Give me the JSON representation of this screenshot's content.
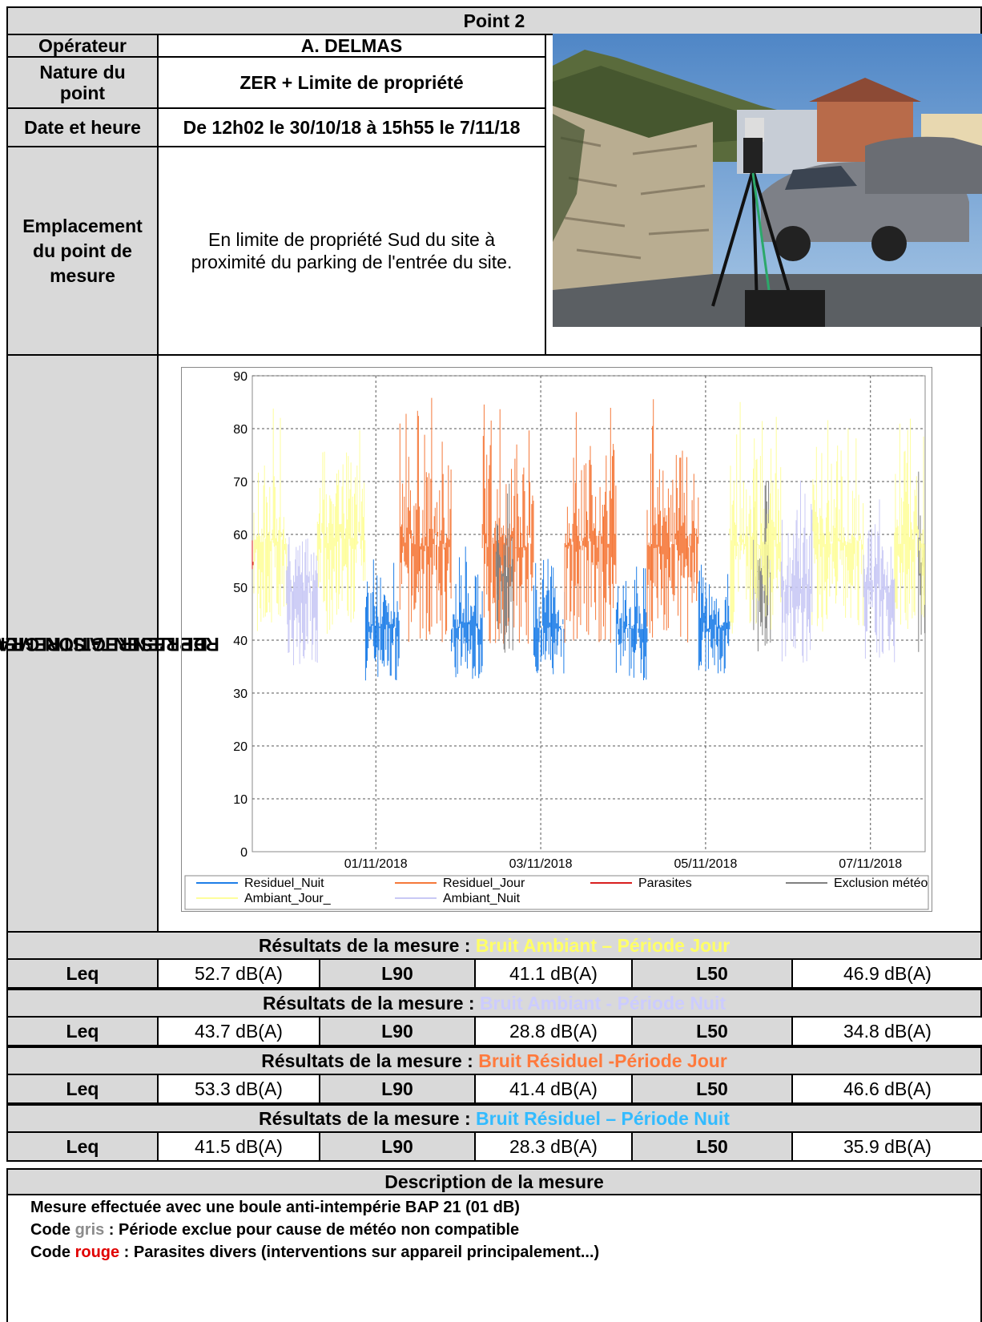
{
  "header": {
    "title": "Point 2"
  },
  "info": {
    "operateur_label": "Opérateur",
    "operateur_value": "A. DELMAS",
    "nature_label_1": "Nature du",
    "nature_label_2": "point",
    "nature_value": "ZER + Limite de propriété",
    "date_label": "Date et heure",
    "date_value": "De 12h02 le 30/10/18 à 15h55 le 7/11/18",
    "emplacement_label_1": "Emplacement",
    "emplacement_label_2": "du point de",
    "emplacement_label_3": "mesure",
    "emplacement_value_1": "En limite de propriété Sud du site à",
    "emplacement_value_2": "proximité du parking de l'entrée du site."
  },
  "graph_section": {
    "label_1": "REPRESENTATION GRAPHIQUE",
    "label_2": "DE L'ENREGISTREMENT"
  },
  "chart_data": {
    "type": "line",
    "y_ticks": [
      "0",
      "10",
      "20",
      "30",
      "40",
      "50",
      "60",
      "70",
      "80",
      "90"
    ],
    "ylim": [
      0,
      90
    ],
    "x_ticks": [
      "01/11/2018",
      "03/11/2018",
      "05/11/2018",
      "07/11/2018"
    ],
    "xlim": [
      "30/10/2018 12:02",
      "07/11/2018 15:55"
    ],
    "grid": true,
    "legend_position": "bottom",
    "series": [
      {
        "name": "Residuel_Nuit",
        "color": "#1e7ee8",
        "segments": [
          [
            "31/10 21:00",
            "01/11 07:00"
          ],
          [
            "01/11 22:00",
            "02/11 07:00"
          ],
          [
            "02/11 22:00",
            "03/11 07:00"
          ],
          [
            "03/11 22:00",
            "04/11 07:00"
          ],
          [
            "04/11 22:00",
            "05/11 07:00"
          ]
        ],
        "approx_range": [
          26,
          58
        ]
      },
      {
        "name": "Residuel_Jour",
        "color": "#f5793a",
        "segments": [
          [
            "01/11 07:00",
            "01/11 22:00"
          ],
          [
            "02/11 07:00",
            "02/11 22:00"
          ],
          [
            "03/11 07:00",
            "03/11 22:00"
          ],
          [
            "04/11 07:00",
            "04/11 22:00"
          ]
        ],
        "approx_range": [
          27,
          88
        ]
      },
      {
        "name": "Parasites",
        "color": "#d81f1f",
        "segments": [
          [
            "30/10 12:02",
            "30/10 12:30"
          ]
        ],
        "approx_range": [
          42,
          66
        ]
      },
      {
        "name": "Exclusion météo",
        "color": "#808080",
        "segments": [
          [
            "02/11 11:00",
            "02/11 16:00"
          ],
          [
            "05/11 14:00",
            "05/11 19:00"
          ],
          [
            "07/11 14:00",
            "07/11 15:55"
          ]
        ],
        "approx_range": [
          28,
          76
        ]
      },
      {
        "name": "Ambiant_Jour_",
        "color": "#fefe9c",
        "segments": [
          [
            "30/10 12:30",
            "30/10 22:00"
          ],
          [
            "31/10 07:00",
            "31/10 21:00"
          ],
          [
            "05/11 07:00",
            "05/11 22:00"
          ],
          [
            "06/11 07:00",
            "06/11 22:00"
          ],
          [
            "07/11 07:00",
            "07/11 15:55"
          ]
        ],
        "approx_range": [
          30,
          86
        ]
      },
      {
        "name": "Ambiant_Nuit",
        "color": "#c9c9f5",
        "segments": [
          [
            "30/10 22:00",
            "31/10 07:00"
          ],
          [
            "05/11 22:00",
            "06/11 07:00"
          ],
          [
            "06/11 22:00",
            "07/11 07:00"
          ]
        ],
        "approx_range": [
          26,
          72
        ]
      }
    ]
  },
  "results": [
    {
      "heading_prefix": "Résultats de la mesure : ",
      "heading_highlight": "Bruit Ambiant – Période Jour",
      "highlight_color": "#ffff66",
      "leq_label": "Leq",
      "leq_value": "52.7 dB(A)",
      "l90_label": "L90",
      "l90_value": "41.1 dB(A)",
      "l50_label": "L50",
      "l50_value": "46.9 dB(A)"
    },
    {
      "heading_prefix": "Résultats de la mesure : ",
      "heading_highlight": "Bruit Ambiant - Période Nuit",
      "highlight_color": "#ccccff",
      "leq_label": "Leq",
      "leq_value": "43.7 dB(A)",
      "l90_label": "L90",
      "l90_value": "28.8 dB(A)",
      "l50_label": "L50",
      "l50_value": "34.8 dB(A)"
    },
    {
      "heading_prefix": "Résultats de la mesure : ",
      "heading_highlight": "Bruit Résiduel -Période Jour",
      "highlight_color": "#ff7a3d",
      "leq_label": "Leq",
      "leq_value": "53.3 dB(A)",
      "l90_label": "L90",
      "l90_value": "41.4 dB(A)",
      "l50_label": "L50",
      "l50_value": "46.6 dB(A)"
    },
    {
      "heading_prefix": "Résultats de la mesure : ",
      "heading_highlight": "Bruit Résiduel – Période Nuit",
      "highlight_color": "#33bbff",
      "leq_label": "Leq",
      "leq_value": "41.5 dB(A)",
      "l90_label": "L90",
      "l90_value": "28.3 dB(A)",
      "l50_label": "L50",
      "l50_value": "35.9 dB(A)"
    }
  ],
  "description": {
    "heading": "Description de la mesure",
    "line1": "Mesure effectuée avec une boule anti-intempérie BAP 21 (01 dB)",
    "line2_a": "Code ",
    "line2_b": "gris",
    "line2_c": " : Période exclue pour cause de météo non compatible",
    "line3_a": "Code ",
    "line3_b": "rouge",
    "line3_c": " : Parasites divers (interventions sur appareil principalement...)",
    "gris_color": "#8c8c8c",
    "rouge_color": "#e00000"
  }
}
